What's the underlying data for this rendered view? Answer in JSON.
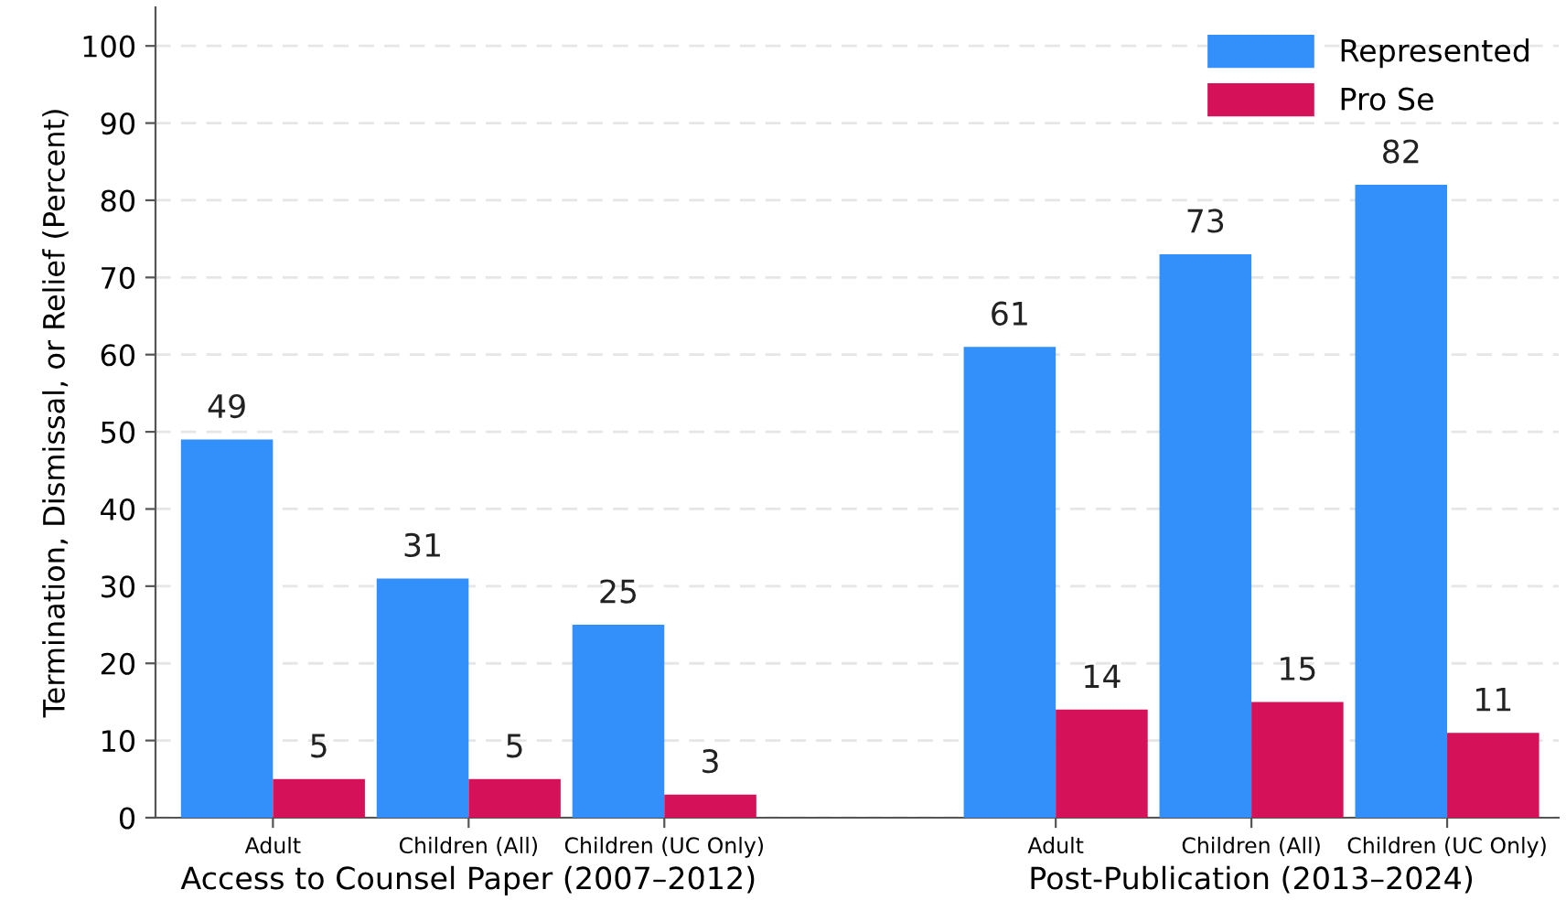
{
  "chart_data": {
    "type": "bar",
    "ylabel": "Termination, Dismissal, or Relief (Percent)",
    "categories": [
      "Adult",
      "Children (All)",
      "Children (UC Only)",
      null,
      "Adult",
      "Children (All)",
      "Children (UC Only)"
    ],
    "series": [
      {
        "name": "Represented",
        "color": "#338ffa",
        "values": [
          49,
          31,
          25,
          null,
          61,
          73,
          82
        ]
      },
      {
        "name": "Pro Se",
        "color": "#d41159",
        "values": [
          5,
          5,
          3,
          null,
          14,
          15,
          11
        ]
      }
    ],
    "annotations": [
      "Access to Counsel Paper (2007–2012)",
      "Post-Publication (2013–2024)"
    ],
    "ylim": [
      0,
      105
    ],
    "yticks": [
      0,
      10,
      20,
      30,
      40,
      50,
      60,
      70,
      80,
      90,
      100
    ],
    "data_labels": true,
    "grid": "y",
    "legend": "top right"
  }
}
